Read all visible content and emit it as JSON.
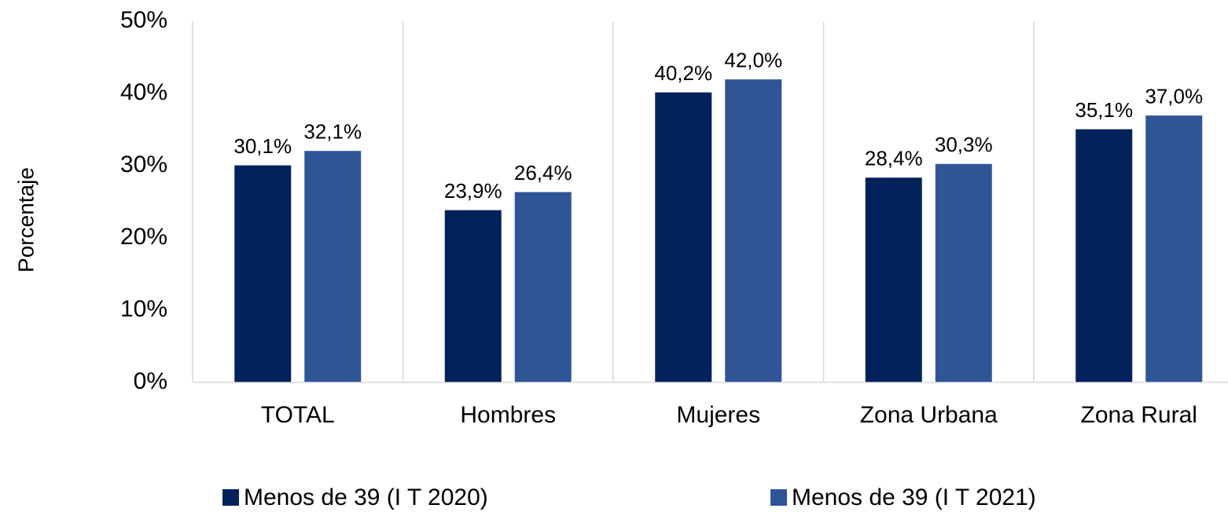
{
  "chart_data": {
    "type": "bar",
    "y_label": "Porcentaje",
    "categories": [
      "TOTAL",
      "Hombres",
      "Mujeres",
      "Zona Urbana",
      "Zona Rural"
    ],
    "series": [
      {
        "name": "Menos de 39 (I T 2020)",
        "color": "#03215a",
        "values": [
          30.1,
          23.9,
          40.2,
          28.4,
          35.1
        ],
        "value_labels": [
          "30,1%",
          "23,9%",
          "40,2%",
          "28,4%",
          "35,1%"
        ]
      },
      {
        "name": "Menos de 39 (I T 2021)",
        "color": "#2f5597",
        "values": [
          32.1,
          26.4,
          42.0,
          30.3,
          37.0
        ],
        "value_labels": [
          "32,1%",
          "26,4%",
          "42,0%",
          "30,3%",
          "37,0%"
        ]
      }
    ],
    "ylim": [
      0,
      50
    ],
    "yticks": [
      {
        "value": 0,
        "label": "0%"
      },
      {
        "value": 10,
        "label": "10%"
      },
      {
        "value": 20,
        "label": "20%"
      },
      {
        "value": 30,
        "label": "30%"
      },
      {
        "value": 40,
        "label": "40%"
      },
      {
        "value": 50,
        "label": "50%"
      }
    ],
    "grid": false,
    "legend": "bottom"
  }
}
